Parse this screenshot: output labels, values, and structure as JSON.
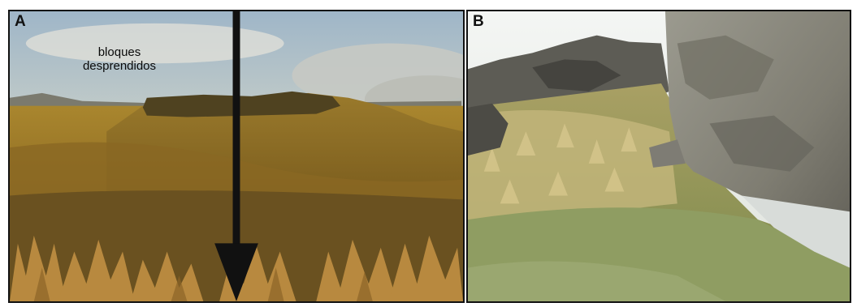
{
  "panels": [
    {
      "letter": "A",
      "annotation": {
        "line1": "bloques",
        "line2": "desprendidos"
      }
    },
    {
      "letter": "B"
    }
  ]
}
